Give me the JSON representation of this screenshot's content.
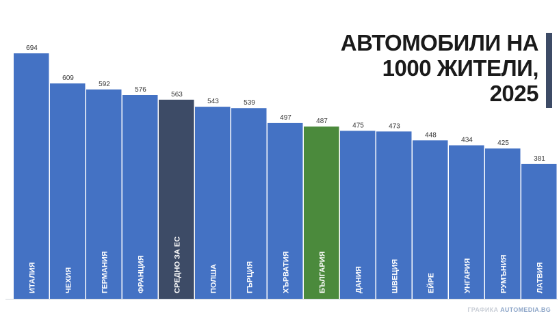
{
  "chart_data": {
    "type": "bar",
    "title_lines": [
      "АВТОМОБИЛИ НА",
      "1000 ЖИТЕЛИ,",
      "2025"
    ],
    "categories": [
      "ИТАЛИЯ",
      "ЧЕХИЯ",
      "ГЕРМАНИЯ",
      "ФРАНЦИЯ",
      "СРЕДНО ЗА ЕС",
      "ПОЛША",
      "ГЪРЦИЯ",
      "ХЪРВАТИЯ",
      "БЪЛГАРИЯ",
      "ДАНИЯ",
      "ШВЕЦИЯ",
      "ЕЙРЕ",
      "УНГАРИЯ",
      "РУМЪНИЯ",
      "ЛАТВИЯ"
    ],
    "values": [
      694,
      609,
      592,
      576,
      563,
      543,
      539,
      497,
      487,
      475,
      473,
      448,
      434,
      425,
      381
    ],
    "highlights": {
      "СРЕДНО ЗА ЕС": "#3d4b66",
      "БЪЛГАРИЯ": "#4b8a3c"
    },
    "colors": {
      "bar": "#4472c4",
      "title_bar": "#3d4b66",
      "baseline": "#d0d4da"
    },
    "xlabel": "",
    "ylabel": "",
    "grid": false,
    "legend": "none"
  },
  "credit": {
    "prefix": "ГРАФИКА",
    "brand": "AUTOMEDIA.BG"
  }
}
